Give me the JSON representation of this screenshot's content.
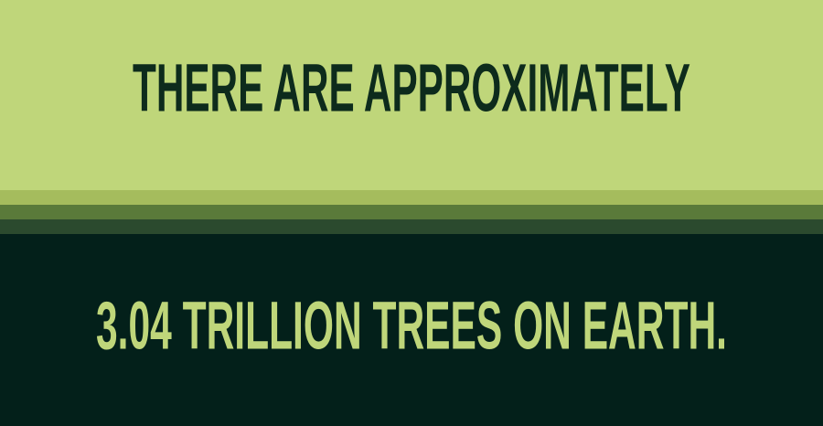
{
  "headline": {
    "top": "THERE ARE APPROXIMATELY",
    "bottom": "3.04 TRILLION TREES ON EARTH."
  }
}
